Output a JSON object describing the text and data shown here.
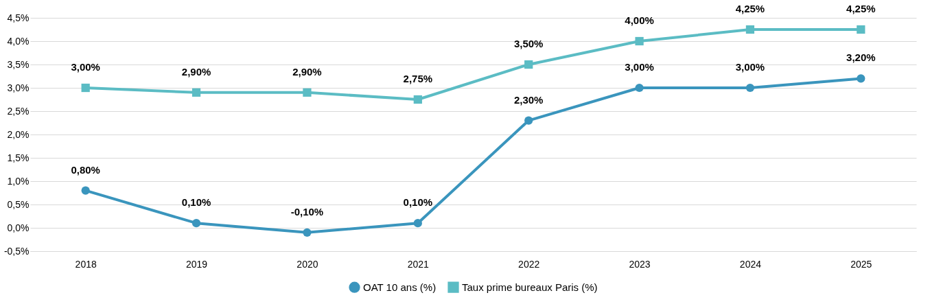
{
  "chart_data": {
    "type": "line",
    "categories": [
      "2018",
      "2019",
      "2020",
      "2021",
      "2022",
      "2023",
      "2024",
      "2025"
    ],
    "series": [
      {
        "name": "OAT 10 ans (%)",
        "color": "#3a95bd",
        "marker": "circle",
        "values": [
          0.8,
          0.1,
          -0.1,
          0.1,
          2.3,
          3.0,
          3.0,
          3.2
        ],
        "value_labels": [
          "0,80%",
          "0,10%",
          "-0,10%",
          "0,10%",
          "2,30%",
          "3,00%",
          "3,00%",
          "3,20%"
        ]
      },
      {
        "name": "Taux prime bureaux Paris (%)",
        "color": "#5bbcc4",
        "marker": "square",
        "values": [
          3.0,
          2.9,
          2.9,
          2.75,
          3.5,
          4.0,
          4.25,
          4.25
        ],
        "value_labels": [
          "3,00%",
          "2,90%",
          "2,90%",
          "2,75%",
          "3,50%",
          "4,00%",
          "4,25%",
          "4,25%"
        ]
      }
    ],
    "ylim": [
      -0.5,
      4.5
    ],
    "yticks": [
      {
        "value": -0.5,
        "label": "-0,5%"
      },
      {
        "value": 0,
        "label": "0,0%"
      },
      {
        "value": 0.5,
        "label": "0,5%"
      },
      {
        "value": 1,
        "label": "1,0%"
      },
      {
        "value": 1.5,
        "label": "1,5%"
      },
      {
        "value": 2,
        "label": "2,0%"
      },
      {
        "value": 2.5,
        "label": "2,5%"
      },
      {
        "value": 3,
        "label": "3,0%"
      },
      {
        "value": 3.5,
        "label": "3,5%"
      },
      {
        "value": 4,
        "label": "4,0%"
      },
      {
        "value": 4.5,
        "label": "4,5%"
      }
    ],
    "grid": "y",
    "legend": "bottom",
    "line_style": "solid"
  }
}
